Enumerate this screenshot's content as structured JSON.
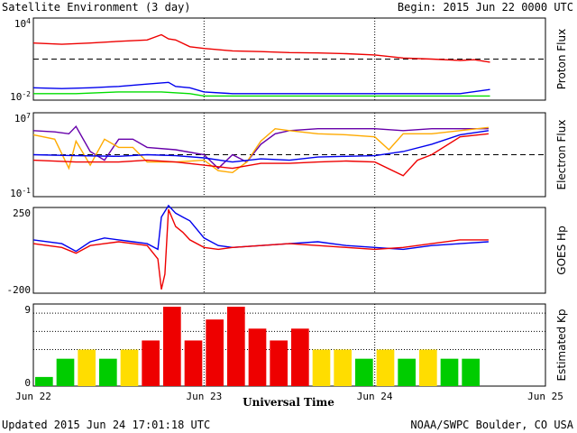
{
  "header": {
    "title": "Satellite Environment (3 day)",
    "begin": "Begin:  2015 Jun 22 0000 UTC"
  },
  "footer": {
    "updated": "Updated 2015 Jun 24 17:01:18 UTC",
    "credit": "NOAA/SWPC Boulder, CO USA",
    "x_axis_title": "Universal Time"
  },
  "chart_data": [
    {
      "type": "line",
      "title": "Proton Flux",
      "ylabel": "Proton Flux",
      "y_scale": "log",
      "ylim": [
        0.01,
        10000
      ],
      "tick_labels": [
        "10^4",
        "10^-2"
      ],
      "threshold": 10,
      "x_unit": "hours since 2015 Jun 22 0000 UTC",
      "series": [
        {
          "color": "#ee0000",
          "x": [
            0,
            4,
            8,
            12,
            16,
            18,
            19,
            20,
            22,
            24,
            28,
            32,
            36,
            40,
            44,
            48,
            52,
            56,
            60,
            62,
            64.2
          ],
          "values": [
            150,
            120,
            150,
            200,
            250,
            600,
            300,
            250,
            80,
            60,
            40,
            35,
            30,
            28,
            25,
            20,
            12,
            10,
            8,
            9,
            6
          ]
        },
        {
          "color": "#0000ee",
          "x": [
            0,
            4,
            8,
            12,
            16,
            19,
            20,
            22,
            24,
            28,
            32,
            36,
            40,
            44,
            48,
            52,
            56,
            60,
            64.2
          ],
          "values": [
            0.08,
            0.07,
            0.08,
            0.1,
            0.15,
            0.2,
            0.1,
            0.08,
            0.04,
            0.03,
            0.03,
            0.03,
            0.03,
            0.03,
            0.03,
            0.03,
            0.03,
            0.03,
            0.06
          ]
        },
        {
          "color": "#00dd00",
          "x": [
            0,
            6,
            12,
            18,
            22,
            24,
            30,
            36,
            42,
            48,
            54,
            60,
            64.2
          ],
          "values": [
            0.03,
            0.03,
            0.04,
            0.04,
            0.03,
            0.02,
            0.02,
            0.02,
            0.02,
            0.02,
            0.02,
            0.02,
            0.02
          ]
        }
      ]
    },
    {
      "type": "line",
      "title": "Electron Flux",
      "ylabel": "Electron Flux",
      "y_scale": "log",
      "ylim": [
        0.1,
        10000000
      ],
      "tick_labels": [
        "10^7",
        "10^-1"
      ],
      "threshold": 1000,
      "series": [
        {
          "color": "#6600aa",
          "x": [
            0,
            3,
            5,
            6,
            8,
            10,
            12,
            14,
            16,
            20,
            24,
            26,
            28,
            30,
            32,
            34,
            36,
            40,
            44,
            48,
            52,
            56,
            60,
            64
          ],
          "values": [
            200000,
            150000,
            100000,
            500000,
            2000,
            300,
            30000,
            30000,
            5000,
            3000,
            1000,
            50,
            1000,
            200,
            10000,
            100000,
            200000,
            300000,
            300000,
            300000,
            200000,
            300000,
            300000,
            300000
          ]
        },
        {
          "color": "#ffaa00",
          "x": [
            0,
            3,
            5,
            6,
            8,
            10,
            12,
            14,
            16,
            20,
            24,
            26,
            28,
            30,
            32,
            34,
            36,
            40,
            44,
            48,
            50,
            52,
            56,
            60,
            64
          ],
          "values": [
            80000,
            30000,
            50,
            20000,
            100,
            30000,
            5000,
            5000,
            200,
            200,
            300,
            30,
            20,
            200,
            20000,
            300000,
            200000,
            100000,
            80000,
            50000,
            3000,
            100000,
            100000,
            200000,
            400000
          ]
        },
        {
          "color": "#0000ee",
          "x": [
            0,
            6,
            12,
            16,
            20,
            24,
            28,
            32,
            36,
            40,
            44,
            48,
            52,
            56,
            60,
            64
          ],
          "values": [
            1000,
            800,
            700,
            1000,
            800,
            500,
            200,
            400,
            300,
            600,
            700,
            800,
            2000,
            10000,
            80000,
            200000
          ]
        },
        {
          "color": "#ee0000",
          "x": [
            0,
            6,
            12,
            16,
            20,
            24,
            28,
            32,
            36,
            40,
            44,
            48,
            52,
            54,
            56,
            60,
            64
          ],
          "values": [
            300,
            200,
            200,
            300,
            200,
            100,
            50,
            150,
            150,
            200,
            250,
            200,
            10,
            300,
            1000,
            50000,
            100000
          ]
        }
      ]
    },
    {
      "type": "line",
      "title": "GOES Hp",
      "ylabel": "GOES Hp",
      "ylim": [
        -200,
        250
      ],
      "tick_labels": [
        "250",
        "-200"
      ],
      "series": [
        {
          "color": "#0000ee",
          "x": [
            0,
            4,
            6,
            8,
            10,
            12,
            14,
            16,
            17.5,
            18,
            19,
            20,
            21,
            22,
            24,
            26,
            28,
            32,
            36,
            40,
            44,
            48,
            52,
            56,
            60,
            64
          ],
          "values": [
            80,
            60,
            20,
            70,
            90,
            80,
            70,
            60,
            30,
            200,
            260,
            220,
            200,
            180,
            90,
            50,
            40,
            50,
            60,
            70,
            50,
            40,
            30,
            50,
            60,
            70
          ]
        },
        {
          "color": "#ee0000",
          "x": [
            0,
            4,
            6,
            8,
            10,
            12,
            14,
            16,
            17.5,
            18,
            18.5,
            19,
            20,
            21,
            22,
            24,
            26,
            28,
            32,
            36,
            40,
            44,
            48,
            52,
            56,
            60,
            64
          ],
          "values": [
            60,
            40,
            10,
            50,
            60,
            70,
            60,
            50,
            -20,
            -180,
            -100,
            240,
            150,
            120,
            80,
            40,
            30,
            40,
            50,
            60,
            50,
            40,
            30,
            40,
            60,
            80,
            80
          ]
        }
      ]
    },
    {
      "type": "bar",
      "title": "Estimated Kp",
      "ylabel": "Estimated Kp",
      "ylim": [
        0,
        9
      ],
      "tick_labels": [
        "9",
        "0"
      ],
      "bar_hours": 3,
      "values": [
        1,
        3,
        4,
        3,
        4,
        5,
        8.7,
        5,
        7.3,
        8.7,
        6.3,
        5,
        6.3,
        4,
        4,
        3,
        4,
        3,
        4,
        3,
        3
      ],
      "color_scale": {
        "green": "#00cc00",
        "yellow": "#ffdd00",
        "red": "#ee0000"
      }
    }
  ],
  "x_axis": {
    "hours_total": 72,
    "tick_labels": [
      "Jun 22",
      "Jun 23",
      "Jun 24",
      "Jun 25"
    ],
    "tick_hours": [
      0,
      24,
      48,
      72
    ]
  }
}
